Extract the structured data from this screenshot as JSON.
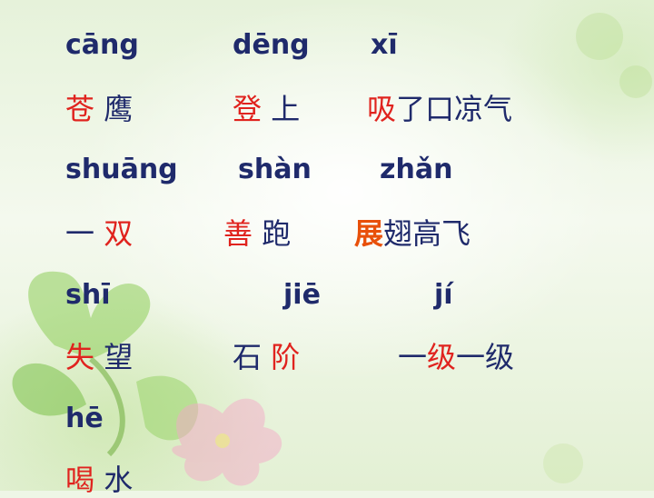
{
  "rows": [
    {
      "type": "pinyin",
      "items": [
        {
          "text": "cāng"
        },
        {
          "text": "dēng"
        },
        {
          "text": "xī"
        }
      ]
    },
    {
      "type": "hanzi",
      "items": [
        [
          {
            "text": "苍",
            "color": "red"
          },
          {
            "text": " 鹰",
            "color": "blue"
          }
        ],
        [
          {
            "text": "登",
            "color": "red"
          },
          {
            "text": " 上",
            "color": "blue"
          }
        ],
        [
          {
            "text": "吸",
            "color": "red"
          },
          {
            "text": "了口凉气",
            "color": "blue"
          }
        ]
      ]
    },
    {
      "type": "pinyin",
      "items": [
        {
          "text": "shuāng"
        },
        {
          "text": "shàn"
        },
        {
          "text": "zhǎn"
        }
      ]
    },
    {
      "type": "hanzi",
      "items": [
        [
          {
            "text": "一 ",
            "color": "blue"
          },
          {
            "text": "双",
            "color": "red"
          }
        ],
        [
          {
            "text": "善",
            "color": "red"
          },
          {
            "text": " 跑",
            "color": "blue"
          }
        ],
        [
          {
            "text": "展",
            "color": "orange"
          },
          {
            "text": "翅高飞",
            "color": "blue"
          }
        ]
      ]
    },
    {
      "type": "pinyin",
      "items": [
        {
          "text": "shī"
        },
        {
          "text": "jiē"
        },
        {
          "text": "jí"
        }
      ]
    },
    {
      "type": "hanzi",
      "items": [
        [
          {
            "text": "失",
            "color": "red"
          },
          {
            "text": " 望",
            "color": "blue"
          }
        ],
        [
          {
            "text": "石 ",
            "color": "blue"
          },
          {
            "text": "阶",
            "color": "red"
          }
        ],
        [
          {
            "text": "一",
            "color": "blue"
          },
          {
            "text": "级",
            "color": "red"
          },
          {
            "text": "一级",
            "color": "blue"
          }
        ]
      ]
    },
    {
      "type": "pinyin",
      "items": [
        {
          "text": "hē"
        }
      ]
    },
    {
      "type": "hanzi",
      "items": [
        [
          {
            "text": "喝",
            "color": "red"
          },
          {
            "text": " 水",
            "color": "blue"
          }
        ]
      ]
    }
  ]
}
